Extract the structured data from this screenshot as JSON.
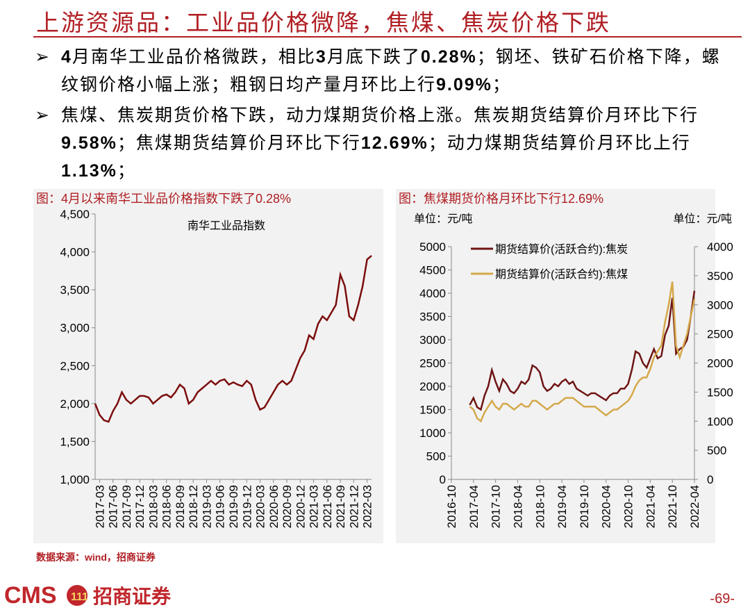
{
  "header": {
    "title": "上游资源品：工业品价格微降，焦煤、焦炭价格下跌"
  },
  "bullets": [
    [
      {
        "text": "4",
        "bold": true
      },
      "月南华工业品价格微跌，相比",
      {
        "text": "3",
        "bold": true
      },
      "月底下跌了",
      {
        "text": "0.28%",
        "bold": true
      },
      "；钢坯、铁矿石价格下降，螺纹钢价格小幅上涨；粗钢日均产量月环比上行",
      {
        "text": "9.09%",
        "bold": true
      },
      "；"
    ],
    [
      "焦煤、焦炭期货价格下跌，动力煤期货价格上涨。焦炭期货结算价月环比下行",
      {
        "text": "9.58%",
        "bold": true
      },
      "；焦煤期货结算价月环比下行",
      {
        "text": "12.69%",
        "bold": true
      },
      "；动力煤期货结算价月环比上行",
      {
        "text": "1.13%",
        "bold": true
      },
      "；"
    ]
  ],
  "chart_data": [
    {
      "type": "line",
      "title": "图：4月以来南华工业品价格指数下跌了0.28%",
      "categories": [
        null,
        "2017-03",
        null,
        null,
        "2017-06",
        null,
        null,
        "2017-09",
        null,
        null,
        "2017-12",
        null,
        null,
        "2018-03",
        null,
        null,
        "2018-06",
        null,
        null,
        "2018-09",
        null,
        null,
        "2018-12",
        null,
        null,
        "2019-03",
        null,
        null,
        "2019-06",
        null,
        null,
        "2019-09",
        null,
        null,
        "2019-12",
        null,
        null,
        "2020-03",
        null,
        null,
        "2020-06",
        null,
        null,
        "2020-09",
        null,
        null,
        "2020-12",
        null,
        null,
        "2021-03",
        null,
        null,
        "2021-06",
        null,
        null,
        "2021-09",
        null,
        null,
        "2021-12",
        null,
        null,
        "2022-03",
        null
      ],
      "series": [
        {
          "name": "南华工业品指数",
          "color": "#7b0c0c",
          "values": [
            2000,
            1850,
            1780,
            1760,
            1900,
            2000,
            2150,
            2050,
            2000,
            2050,
            2100,
            2100,
            2080,
            2000,
            2050,
            2100,
            2120,
            2080,
            2150,
            2250,
            2200,
            2000,
            2050,
            2150,
            2200,
            2250,
            2300,
            2250,
            2300,
            2320,
            2250,
            2280,
            2250,
            2230,
            2300,
            2250,
            2050,
            1920,
            1950,
            2050,
            2150,
            2250,
            2300,
            2250,
            2300,
            2450,
            2600,
            2700,
            2900,
            2850,
            3050,
            3150,
            3100,
            3200,
            3300,
            3700,
            3550,
            3150,
            3100,
            3300,
            3550,
            3900,
            3950
          ]
        }
      ],
      "ylim": [
        1000,
        4500
      ],
      "yticks": [
        {
          "value": 1000,
          "label": "1,000"
        },
        {
          "value": 1500,
          "label": "1,500"
        },
        {
          "value": 2000,
          "label": "2,000"
        },
        {
          "value": 2500,
          "label": "2,500"
        },
        {
          "value": 3000,
          "label": "3,000"
        },
        {
          "value": 3500,
          "label": "3,500"
        },
        {
          "value": 4000,
          "label": "4,000"
        },
        {
          "value": 4500,
          "label": "4,500"
        }
      ]
    },
    {
      "type": "line",
      "title": "图：焦煤期货价格月环比下行12.69%",
      "ylabel": "单位：元/吨",
      "y2label": "单位：元/吨",
      "categories": [
        "2016-10",
        null,
        null,
        null,
        null,
        null,
        "2017-04",
        null,
        null,
        null,
        null,
        null,
        "2017-10",
        null,
        null,
        null,
        null,
        null,
        "2018-04",
        null,
        null,
        null,
        null,
        null,
        "2018-10",
        null,
        null,
        null,
        null,
        null,
        "2019-04",
        null,
        null,
        null,
        null,
        null,
        "2019-10",
        null,
        null,
        null,
        null,
        null,
        "2020-04",
        null,
        null,
        null,
        null,
        null,
        "2020-10",
        null,
        null,
        null,
        null,
        null,
        "2021-04",
        null,
        null,
        null,
        null,
        null,
        "2021-10",
        null,
        null,
        null,
        null,
        null,
        "2022-04"
      ],
      "series": [
        {
          "name": "期货结算价(活跃合约):焦炭",
          "color": "#6e1414",
          "values": [
            null,
            null,
            null,
            null,
            null,
            1600,
            1750,
            1550,
            1500,
            1800,
            2000,
            2350,
            2100,
            1900,
            2150,
            2050,
            1900,
            1850,
            1950,
            2100,
            2050,
            2150,
            2450,
            2400,
            2300,
            2000,
            1900,
            1950,
            2050,
            2000,
            2100,
            2150,
            2050,
            2100,
            1950,
            1900,
            1850,
            1800,
            1850,
            1850,
            1800,
            1750,
            1700,
            1800,
            1850,
            1850,
            1950,
            1950,
            2050,
            2350,
            2750,
            2700,
            2500,
            2400,
            2600,
            2800,
            2600,
            2650,
            3100,
            3300,
            3900,
            2700,
            2800,
            2850,
            3000,
            3500,
            4050
          ]
        },
        {
          "name": "期货结算价(活跃合约):焦煤",
          "color": "#d4a84a",
          "axis": "y2",
          "values": [
            null,
            null,
            null,
            null,
            null,
            1250,
            1200,
            1050,
            1000,
            1150,
            1250,
            1350,
            1250,
            1200,
            1300,
            1300,
            1250,
            1200,
            1250,
            1300,
            1250,
            1250,
            1350,
            1350,
            1300,
            1250,
            1200,
            1250,
            1300,
            1300,
            1350,
            1400,
            1400,
            1400,
            1350,
            1300,
            1250,
            1250,
            1250,
            1250,
            1200,
            1150,
            1100,
            1150,
            1200,
            1200,
            1250,
            1300,
            1350,
            1450,
            1600,
            1700,
            1750,
            1750,
            1900,
            2100,
            2200,
            2300,
            2700,
            3000,
            3400,
            2300,
            2100,
            2300,
            2500,
            2800,
            3100
          ]
        }
      ],
      "ylim": [
        0,
        5000
      ],
      "yticks": [
        0,
        500,
        1000,
        1500,
        2000,
        2500,
        3000,
        3500,
        4000,
        4500,
        5000
      ],
      "y2lim": [
        0,
        4000
      ],
      "y2ticks": [
        0,
        500,
        1000,
        1500,
        2000,
        2500,
        3000,
        3500,
        4000
      ]
    }
  ],
  "source": "数据来源：wind，招商证券",
  "footer": {
    "logo": "CMS",
    "company": "招商证券",
    "page": "-69-"
  }
}
